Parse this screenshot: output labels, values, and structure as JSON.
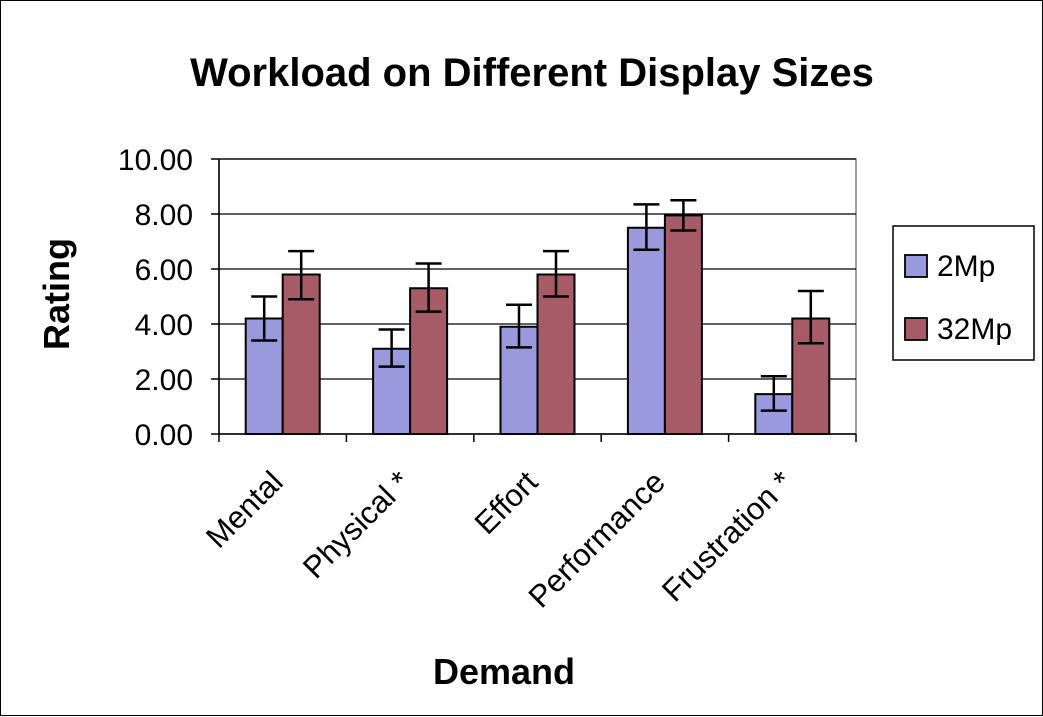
{
  "chart_data": {
    "type": "bar",
    "title": "Workload on Different Display Sizes",
    "xlabel": "Demand",
    "ylabel": "Rating",
    "categories": [
      "Mental",
      "Physical *",
      "Effort",
      "Performance",
      "Frustration *"
    ],
    "series": [
      {
        "name": "2Mp",
        "color": "#9999dd",
        "values": [
          4.2,
          3.1,
          3.9,
          7.5,
          1.45
        ],
        "error_low": [
          3.4,
          2.45,
          3.15,
          6.7,
          0.85
        ],
        "error_high": [
          5.0,
          3.8,
          4.7,
          8.35,
          2.1
        ]
      },
      {
        "name": "32Mp",
        "color": "#a65b66",
        "values": [
          5.8,
          5.3,
          5.8,
          7.95,
          4.2
        ],
        "error_low": [
          4.9,
          4.45,
          5.0,
          7.4,
          3.3
        ],
        "error_high": [
          6.65,
          6.2,
          6.65,
          8.5,
          5.2
        ]
      }
    ],
    "ylim": [
      0,
      10
    ],
    "yticks": [
      0,
      2,
      4,
      6,
      8,
      10
    ],
    "ytick_labels": [
      "0.00",
      "2.00",
      "4.00",
      "6.00",
      "8.00",
      "10.00"
    ],
    "grid": true,
    "legend": "right"
  }
}
